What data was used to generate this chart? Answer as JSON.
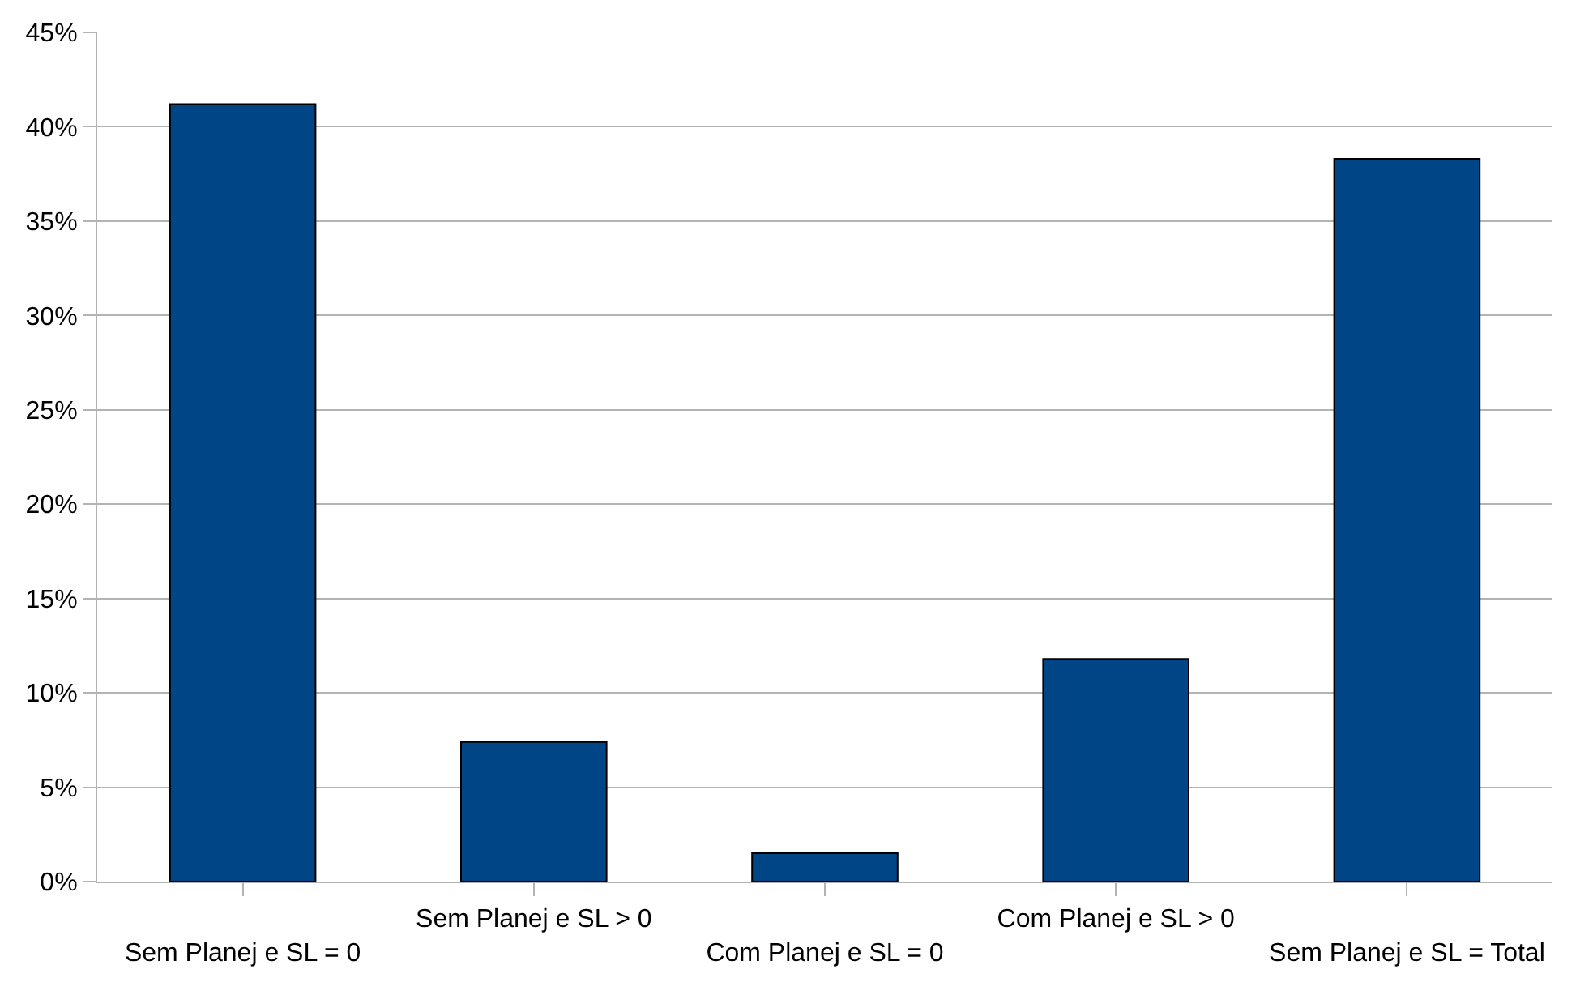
{
  "chart_data": {
    "type": "bar",
    "categories": [
      "Sem Planej e SL = 0",
      "Sem Planej e SL > 0",
      "Com Planej e SL = 0",
      "Com Planej e SL > 0",
      "Sem Planej e SL = Total"
    ],
    "values": [
      41.2,
      7.4,
      1.5,
      11.8,
      38.3
    ],
    "color": "#004586",
    "ylim": [
      0,
      45
    ],
    "yticks": [
      {
        "value": 0,
        "label": "0%"
      },
      {
        "value": 5,
        "label": "5%"
      },
      {
        "value": 10,
        "label": "10%"
      },
      {
        "value": 15,
        "label": "15%"
      },
      {
        "value": 20,
        "label": "20%"
      },
      {
        "value": 25,
        "label": "25%"
      },
      {
        "value": 30,
        "label": "30%"
      },
      {
        "value": 35,
        "label": "35%"
      },
      {
        "value": 40,
        "label": "40%"
      },
      {
        "value": 45,
        "label": "45%"
      }
    ],
    "grid": "y",
    "legend": false
  }
}
